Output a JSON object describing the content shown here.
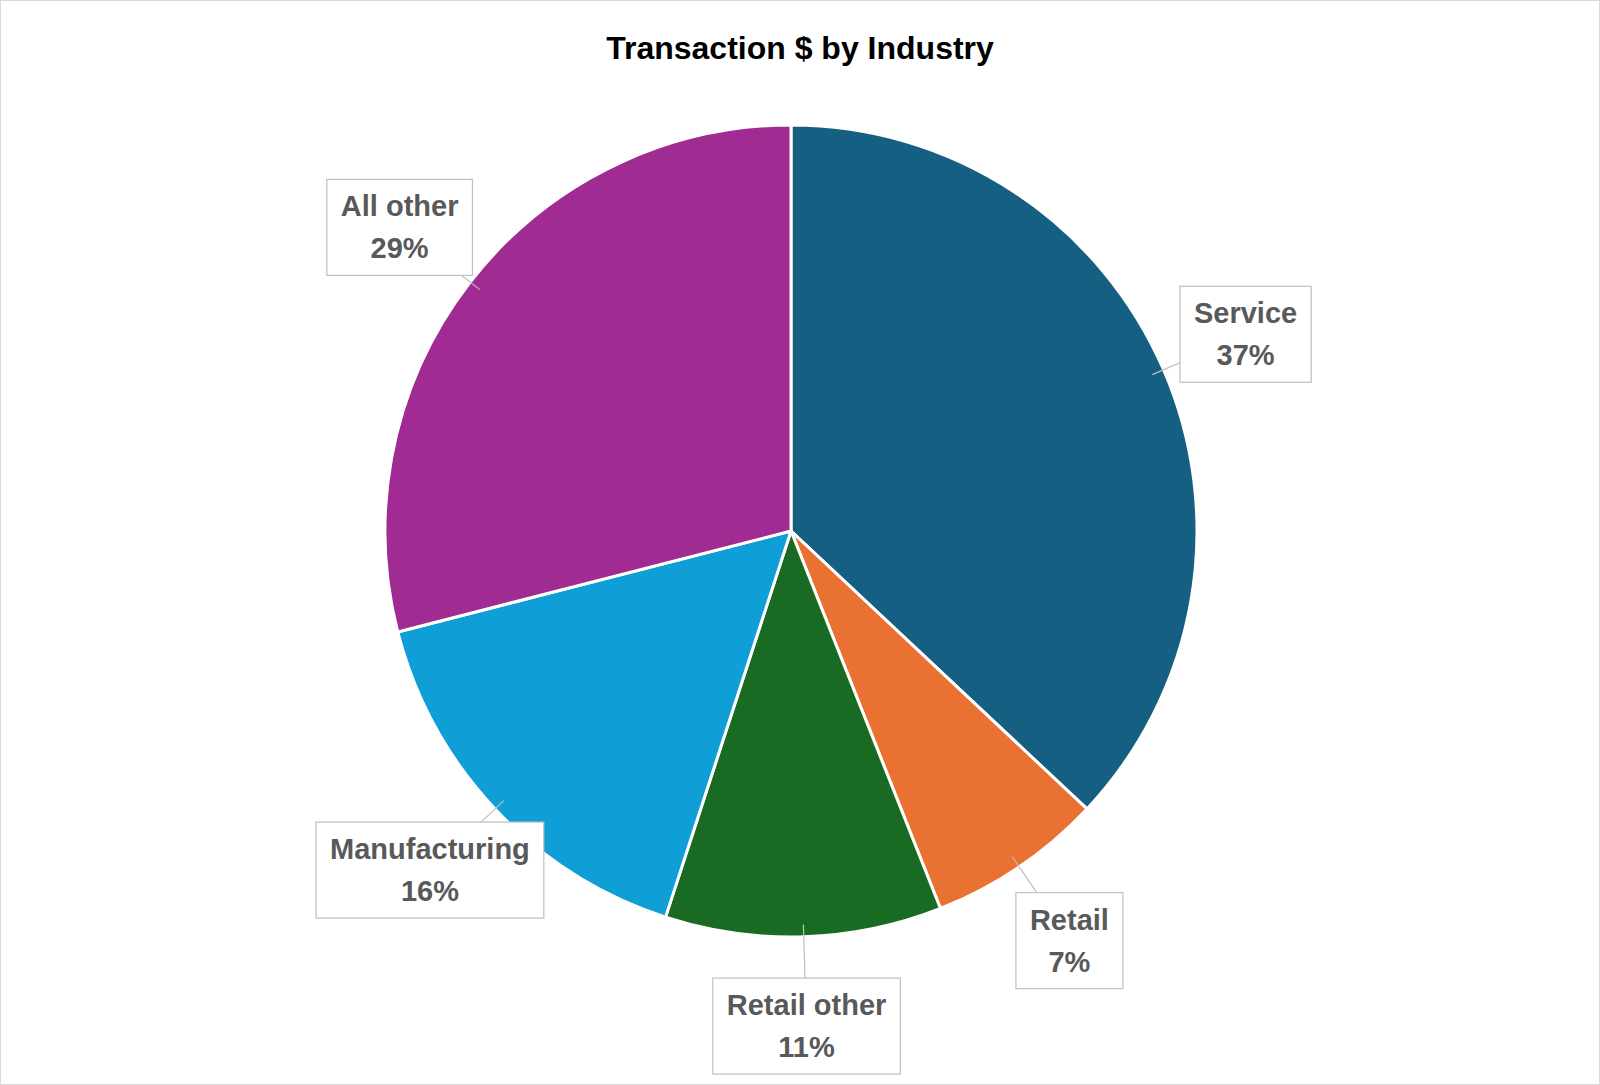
{
  "chart_data": {
    "type": "pie",
    "title": "Transaction $ by Industry",
    "categories": [
      "Service",
      "Retail",
      "Retail other",
      "Manufacturing",
      "All other"
    ],
    "values": [
      37,
      7,
      11,
      16,
      29
    ],
    "value_labels": [
      "37%",
      "7%",
      "11%",
      "16%",
      "29%"
    ],
    "colors": [
      "#156082",
      "#e97132",
      "#196b24",
      "#0f9ed5",
      "#a02b93"
    ],
    "data_labels": true
  }
}
